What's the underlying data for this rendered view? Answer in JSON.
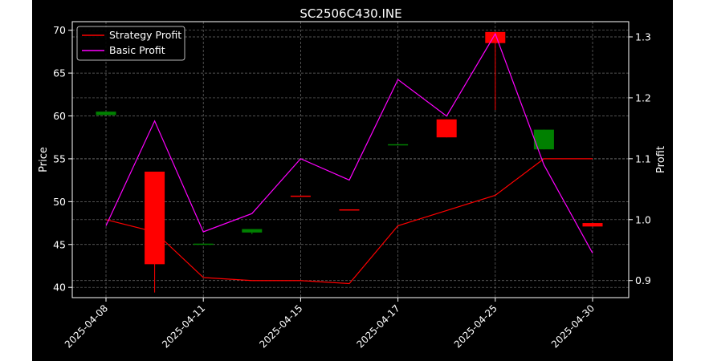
{
  "chart_data": {
    "type": "candlestick",
    "title": "SC2506C430.INE",
    "xlabel": "",
    "ylabel": "Price",
    "y2label": "Profit",
    "ylim": [
      38.8,
      71.0
    ],
    "y2lim": [
      0.872,
      1.325
    ],
    "grid": true,
    "legend_position": "top-left",
    "background": "#000000",
    "x_ticks": [
      "2025-04-08",
      "2025-04-11",
      "2025-04-15",
      "2025-04-17",
      "2025-04-25",
      "2025-04-30"
    ],
    "y_ticks": [
      40,
      45,
      50,
      55,
      60,
      65,
      70
    ],
    "y2_ticks": [
      0.9,
      1.0,
      1.1,
      1.2,
      1.3
    ],
    "candles": [
      {
        "i": 0,
        "open": 60.1,
        "close": 60.5,
        "high": 60.5,
        "low": 60.1
      },
      {
        "i": 1,
        "open": 53.5,
        "close": 42.7,
        "high": 53.5,
        "low": 39.4
      },
      {
        "i": 2,
        "open": 45.0,
        "close": 45.1,
        "high": 45.1,
        "low": 45.0
      },
      {
        "i": 3,
        "open": 46.4,
        "close": 46.8,
        "high": 46.8,
        "low": 46.2
      },
      {
        "i": 4,
        "open": 50.7,
        "close": 50.6,
        "high": 50.7,
        "low": 50.6
      },
      {
        "i": 5,
        "open": 49.1,
        "close": 49.0,
        "high": 49.1,
        "low": 49.0
      },
      {
        "i": 6,
        "open": 56.6,
        "close": 56.7,
        "high": 56.7,
        "low": 56.6
      },
      {
        "i": 7,
        "open": 59.6,
        "close": 57.5,
        "high": 59.6,
        "low": 57.5
      },
      {
        "i": 8,
        "open": 69.8,
        "close": 68.5,
        "high": 69.8,
        "low": 60.7
      },
      {
        "i": 9,
        "open": 56.1,
        "close": 58.4,
        "high": 58.4,
        "low": 56.1
      },
      {
        "i": 10,
        "open": 47.5,
        "close": 47.1,
        "high": 47.5,
        "low": 47.1
      }
    ],
    "series": [
      {
        "name": "Strategy Profit",
        "color": "#ff0000",
        "axis": "right",
        "values": [
          1.0,
          0.98,
          0.905,
          0.9,
          0.9,
          0.895,
          0.99,
          1.015,
          1.04,
          1.1,
          1.1
        ]
      },
      {
        "name": "Basic Profit",
        "color": "#ff00ff",
        "axis": "right",
        "values": [
          0.99,
          1.162,
          0.98,
          1.01,
          1.1,
          1.065,
          1.23,
          1.17,
          1.305,
          1.09,
          0.945
        ]
      }
    ],
    "colors": {
      "up": "#008000",
      "down": "#ff0000"
    }
  }
}
